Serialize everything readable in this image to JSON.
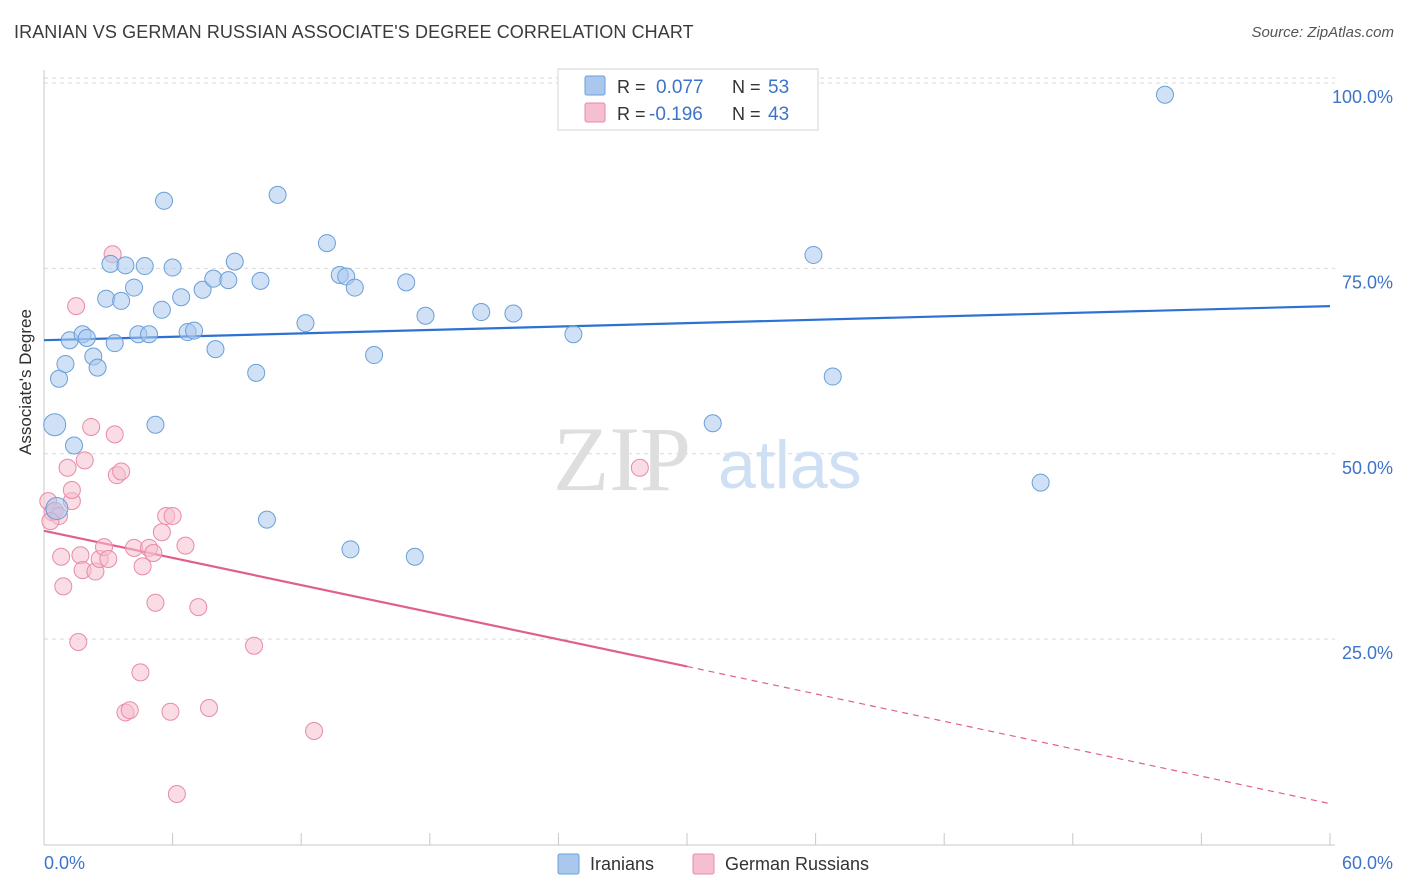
{
  "title": "IRANIAN VS GERMAN RUSSIAN ASSOCIATE'S DEGREE CORRELATION CHART",
  "source": "Source: ZipAtlas.com",
  "watermark": {
    "zip": "ZIP",
    "atlas": "atlas"
  },
  "colors": {
    "blue_fill": "#aac8ee",
    "blue_stroke": "#6a9fd8",
    "blue_line": "#2d72d2",
    "pink_fill": "#f6bfd0",
    "pink_stroke": "#e88aa8",
    "pink_line": "#e0608c",
    "tick_label": "#3d74c9",
    "grid": "#d9d9d9"
  },
  "chart_data": {
    "type": "scatter",
    "title": "IRANIAN VS GERMAN RUSSIAN ASSOCIATE'S DEGREE CORRELATION CHART",
    "xlabel": "",
    "ylabel": "Associate's Degree",
    "xlim": [
      0,
      60
    ],
    "ylim": [
      0,
      103
    ],
    "x_tick_labels": [
      "0.0%",
      "60.0%"
    ],
    "y_ticks": [
      25,
      50,
      75,
      100
    ],
    "y_tick_labels": [
      "25.0%",
      "50.0%",
      "75.0%",
      "100.0%"
    ],
    "legend_position": "top-center",
    "series": [
      {
        "name": "Iranians",
        "r_label": "R =",
        "r_value": "0.077",
        "n_label": "N =",
        "n_value": "53",
        "trend": {
          "x0": 0,
          "y0": 67.2,
          "x1": 60,
          "y1": 71.8
        },
        "points": [
          [
            0.5,
            55.8
          ],
          [
            0.6,
            44.5
          ],
          [
            0.7,
            62.0
          ],
          [
            1.0,
            64.0
          ],
          [
            1.2,
            67.2
          ],
          [
            1.4,
            53.0
          ],
          [
            1.8,
            68.0
          ],
          [
            2.0,
            67.5
          ],
          [
            2.3,
            65.0
          ],
          [
            2.5,
            63.5
          ],
          [
            2.9,
            72.8
          ],
          [
            3.1,
            77.5
          ],
          [
            3.3,
            66.8
          ],
          [
            3.6,
            72.5
          ],
          [
            3.8,
            77.3
          ],
          [
            4.2,
            74.3
          ],
          [
            4.4,
            68.0
          ],
          [
            4.7,
            77.2
          ],
          [
            4.9,
            68.0
          ],
          [
            5.2,
            55.8
          ],
          [
            5.5,
            71.3
          ],
          [
            5.6,
            86.0
          ],
          [
            6.0,
            77.0
          ],
          [
            6.4,
            73.0
          ],
          [
            6.7,
            68.3
          ],
          [
            7.0,
            68.5
          ],
          [
            7.4,
            74.0
          ],
          [
            7.9,
            75.5
          ],
          [
            8.0,
            66.0
          ],
          [
            8.6,
            75.3
          ],
          [
            8.9,
            77.8
          ],
          [
            9.9,
            62.8
          ],
          [
            10.1,
            75.2
          ],
          [
            10.4,
            43.0
          ],
          [
            10.9,
            86.8
          ],
          [
            12.2,
            69.5
          ],
          [
            13.2,
            80.3
          ],
          [
            13.8,
            76.0
          ],
          [
            14.1,
            75.8
          ],
          [
            14.3,
            39.0
          ],
          [
            14.5,
            74.3
          ],
          [
            15.4,
            65.2
          ],
          [
            16.9,
            75.0
          ],
          [
            17.3,
            38.0
          ],
          [
            17.8,
            70.5
          ],
          [
            20.4,
            71.0
          ],
          [
            21.9,
            70.8
          ],
          [
            24.7,
            68.0
          ],
          [
            31.2,
            56.0
          ],
          [
            35.9,
            78.7
          ],
          [
            36.8,
            62.3
          ],
          [
            46.5,
            48.0
          ],
          [
            52.3,
            100.3
          ]
        ]
      },
      {
        "name": "German Russians",
        "r_label": "R =",
        "r_value": "-0.196",
        "n_label": "N =",
        "n_value": "43",
        "trend": {
          "x0": 0,
          "y0": 41.5,
          "x1": 30,
          "y1": 23.2,
          "dash_x1": 60,
          "dash_y1": 4.7
        },
        "points": [
          [
            0.2,
            45.5
          ],
          [
            0.4,
            44.0
          ],
          [
            0.5,
            44.2
          ],
          [
            0.7,
            43.5
          ],
          [
            0.8,
            38.0
          ],
          [
            0.9,
            34.0
          ],
          [
            1.1,
            50.0
          ],
          [
            1.3,
            45.5
          ],
          [
            1.3,
            47.0
          ],
          [
            1.5,
            71.8
          ],
          [
            1.6,
            26.5
          ],
          [
            1.7,
            38.2
          ],
          [
            1.8,
            36.2
          ],
          [
            1.9,
            51.0
          ],
          [
            2.2,
            55.5
          ],
          [
            2.4,
            36.0
          ],
          [
            2.6,
            37.7
          ],
          [
            2.8,
            39.3
          ],
          [
            3.0,
            37.7
          ],
          [
            3.2,
            78.8
          ],
          [
            3.3,
            54.5
          ],
          [
            3.4,
            49.0
          ],
          [
            3.6,
            49.5
          ],
          [
            3.8,
            17.0
          ],
          [
            4.0,
            17.3
          ],
          [
            4.2,
            39.2
          ],
          [
            4.5,
            22.4
          ],
          [
            4.6,
            36.7
          ],
          [
            4.9,
            39.2
          ],
          [
            5.1,
            38.5
          ],
          [
            5.2,
            31.8
          ],
          [
            5.5,
            41.3
          ],
          [
            5.7,
            43.5
          ],
          [
            5.9,
            17.1
          ],
          [
            6.0,
            43.5
          ],
          [
            6.2,
            6.0
          ],
          [
            6.6,
            39.5
          ],
          [
            7.2,
            31.2
          ],
          [
            7.7,
            17.6
          ],
          [
            9.8,
            26.0
          ],
          [
            12.6,
            14.5
          ],
          [
            27.8,
            50.0
          ],
          [
            0.3,
            42.8
          ]
        ]
      }
    ]
  }
}
